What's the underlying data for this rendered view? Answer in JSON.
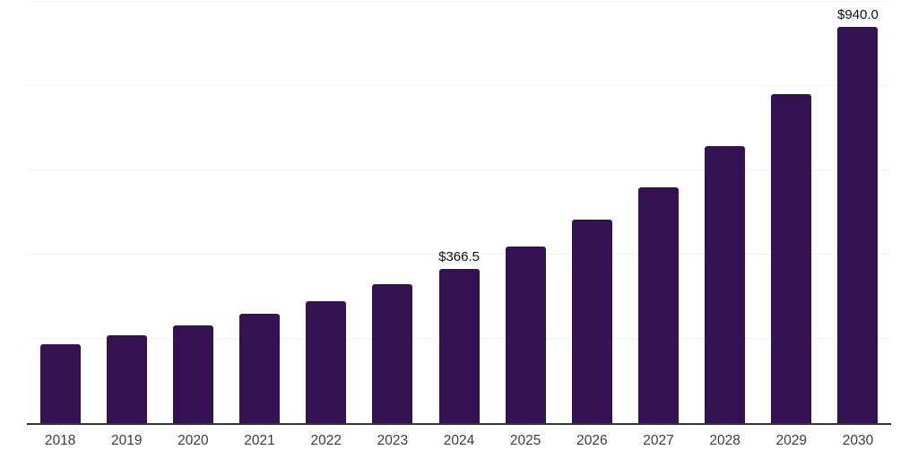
{
  "chart": {
    "background_color": "#ffffff",
    "bar_color": "#341150",
    "axis_line_color": "#333333",
    "gridline_color": "#f3f3f3",
    "x_label_color": "#3d3d3d",
    "value_label_color": "#111111"
  },
  "chart_data": {
    "type": "bar",
    "title": "",
    "xlabel": "",
    "ylabel": "",
    "legend": "none",
    "grid": "horizontal",
    "ylim": [
      0,
      1000
    ],
    "gridline_values": [
      200,
      400,
      600,
      800,
      1000
    ],
    "categories": [
      "2018",
      "2019",
      "2020",
      "2021",
      "2022",
      "2023",
      "2024",
      "2025",
      "2026",
      "2027",
      "2028",
      "2029",
      "2030"
    ],
    "values": [
      188,
      209,
      233,
      259,
      289,
      330,
      366.5,
      420,
      483,
      560,
      658,
      781,
      940
    ],
    "value_labels": [
      "",
      "",
      "",
      "",
      "",
      "",
      "$366.5",
      "",
      "",
      "",
      "",
      "",
      "$940.0"
    ]
  }
}
